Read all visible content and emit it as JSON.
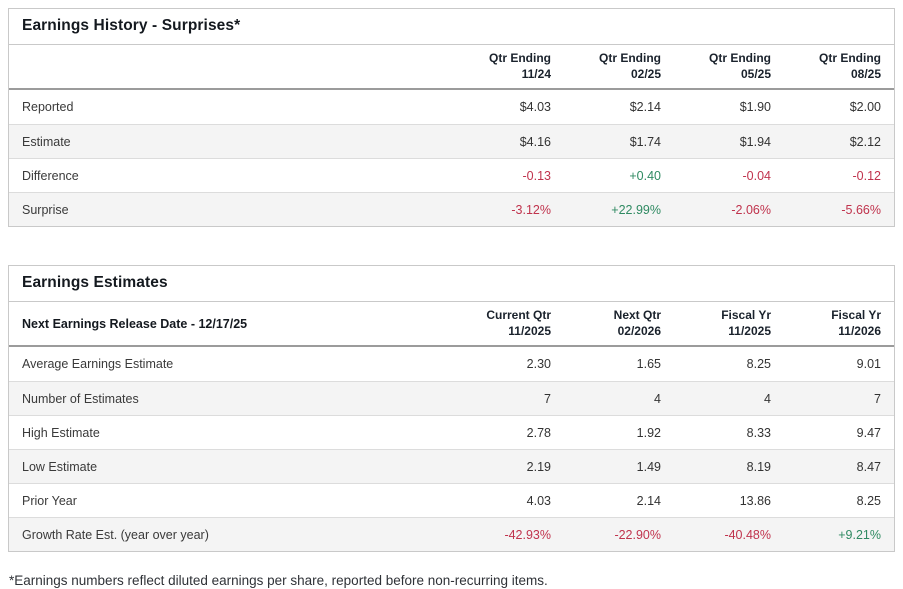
{
  "colors": {
    "negative": "#c0334d",
    "positive": "#2f8a62",
    "title_text": "#14191f",
    "row_stripe": "#f4f4f4",
    "border": "#c9c9c9"
  },
  "surprises_table": {
    "title": "Earnings History - Surprises*",
    "header_label": "",
    "columns": [
      {
        "line1": "Qtr Ending",
        "line2": "11/24"
      },
      {
        "line1": "Qtr Ending",
        "line2": "02/25"
      },
      {
        "line1": "Qtr Ending",
        "line2": "05/25"
      },
      {
        "line1": "Qtr Ending",
        "line2": "08/25"
      }
    ],
    "rows": [
      {
        "label": "Reported",
        "values": [
          "$4.03",
          "$2.14",
          "$1.90",
          "$2.00"
        ]
      },
      {
        "label": "Estimate",
        "values": [
          "$4.16",
          "$1.74",
          "$1.94",
          "$2.12"
        ]
      },
      {
        "label": "Difference",
        "values": [
          "-0.13",
          "+0.40",
          "-0.04",
          "-0.12"
        ],
        "value_colors": [
          "neg",
          "pos",
          "neg",
          "neg"
        ]
      },
      {
        "label": "Surprise",
        "values": [
          "-3.12%",
          "+22.99%",
          "-2.06%",
          "-5.66%"
        ],
        "value_colors": [
          "neg",
          "pos",
          "neg",
          "neg"
        ]
      }
    ]
  },
  "estimates_table": {
    "title": "Earnings Estimates",
    "header_label": "Next Earnings Release Date - 12/17/25",
    "columns": [
      {
        "line1": "Current Qtr",
        "line2": "11/2025"
      },
      {
        "line1": "Next Qtr",
        "line2": "02/2026"
      },
      {
        "line1": "Fiscal Yr",
        "line2": "11/2025"
      },
      {
        "line1": "Fiscal Yr",
        "line2": "11/2026"
      }
    ],
    "rows": [
      {
        "label": "Average Earnings Estimate",
        "values": [
          "2.30",
          "1.65",
          "8.25",
          "9.01"
        ]
      },
      {
        "label": "Number of Estimates",
        "values": [
          "7",
          "4",
          "4",
          "7"
        ]
      },
      {
        "label": "High Estimate",
        "values": [
          "2.78",
          "1.92",
          "8.33",
          "9.47"
        ]
      },
      {
        "label": "Low Estimate",
        "values": [
          "2.19",
          "1.49",
          "8.19",
          "8.47"
        ]
      },
      {
        "label": "Prior Year",
        "values": [
          "4.03",
          "2.14",
          "13.86",
          "8.25"
        ]
      },
      {
        "label": "Growth Rate Est. (year over year)",
        "values": [
          "-42.93%",
          "-22.90%",
          "-40.48%",
          "+9.21%"
        ],
        "value_colors": [
          "neg",
          "neg",
          "neg",
          "pos"
        ]
      }
    ]
  },
  "footnote": "*Earnings numbers reflect diluted earnings per share, reported before non-recurring items."
}
